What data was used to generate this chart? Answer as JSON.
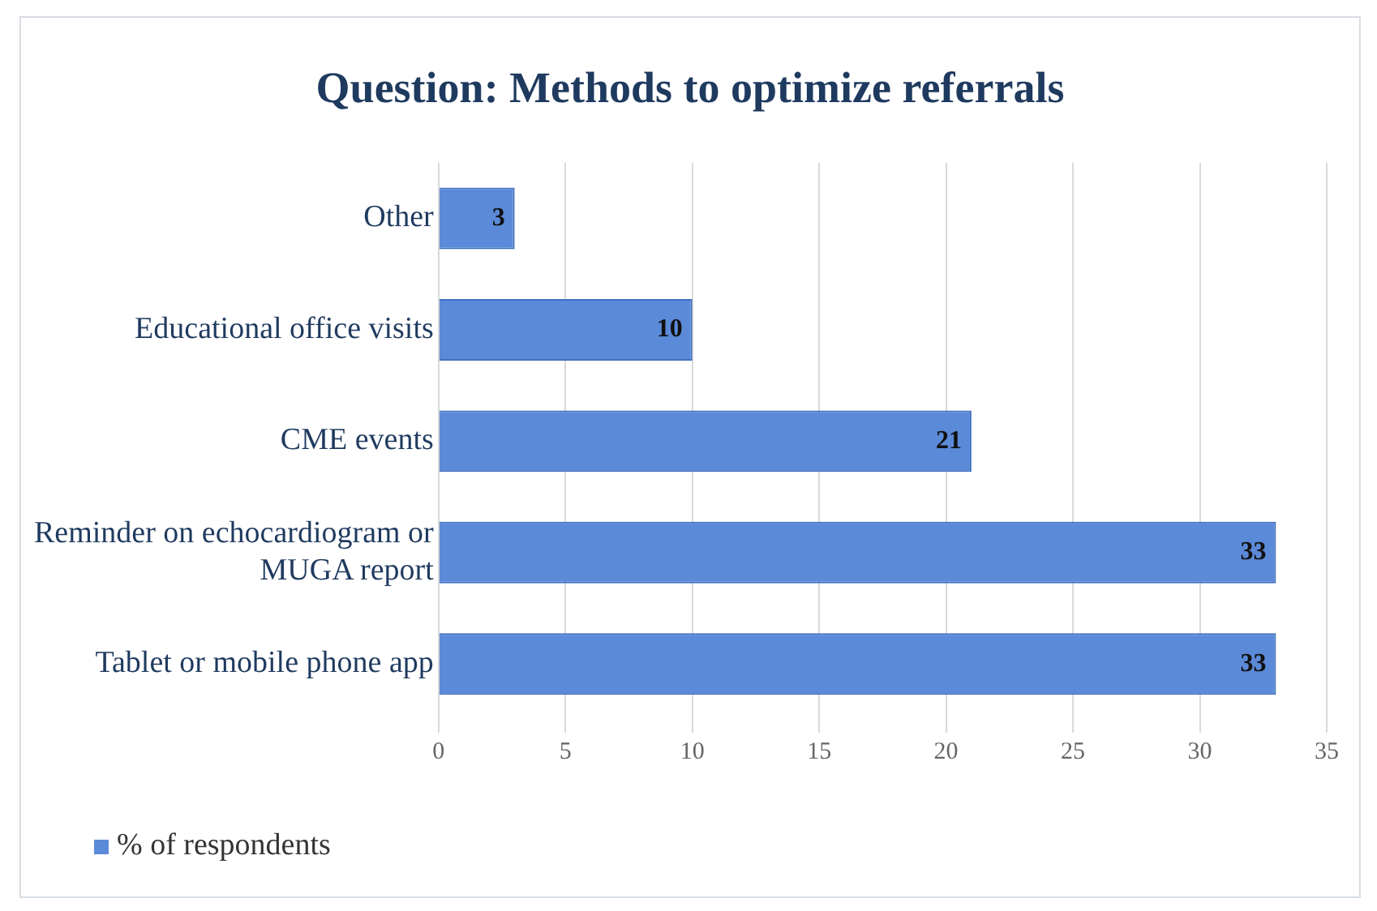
{
  "chart_data": {
    "type": "bar",
    "orientation": "horizontal",
    "title": "Question: Methods to optimize referrals",
    "categories": [
      "Other",
      "Educational office visits",
      "CME events",
      "Reminder on echocardiogram or MUGA report",
      "Tablet or mobile phone app"
    ],
    "series": [
      {
        "name": "% of respondents",
        "color": "#5b8ad8",
        "values": [
          3,
          10,
          21,
          33,
          33
        ]
      }
    ],
    "xlim": [
      0,
      35
    ],
    "xticks": [
      0,
      5,
      10,
      15,
      20,
      25,
      30,
      35
    ],
    "grid": "x",
    "legend": "bottom left",
    "data_labels": true
  }
}
